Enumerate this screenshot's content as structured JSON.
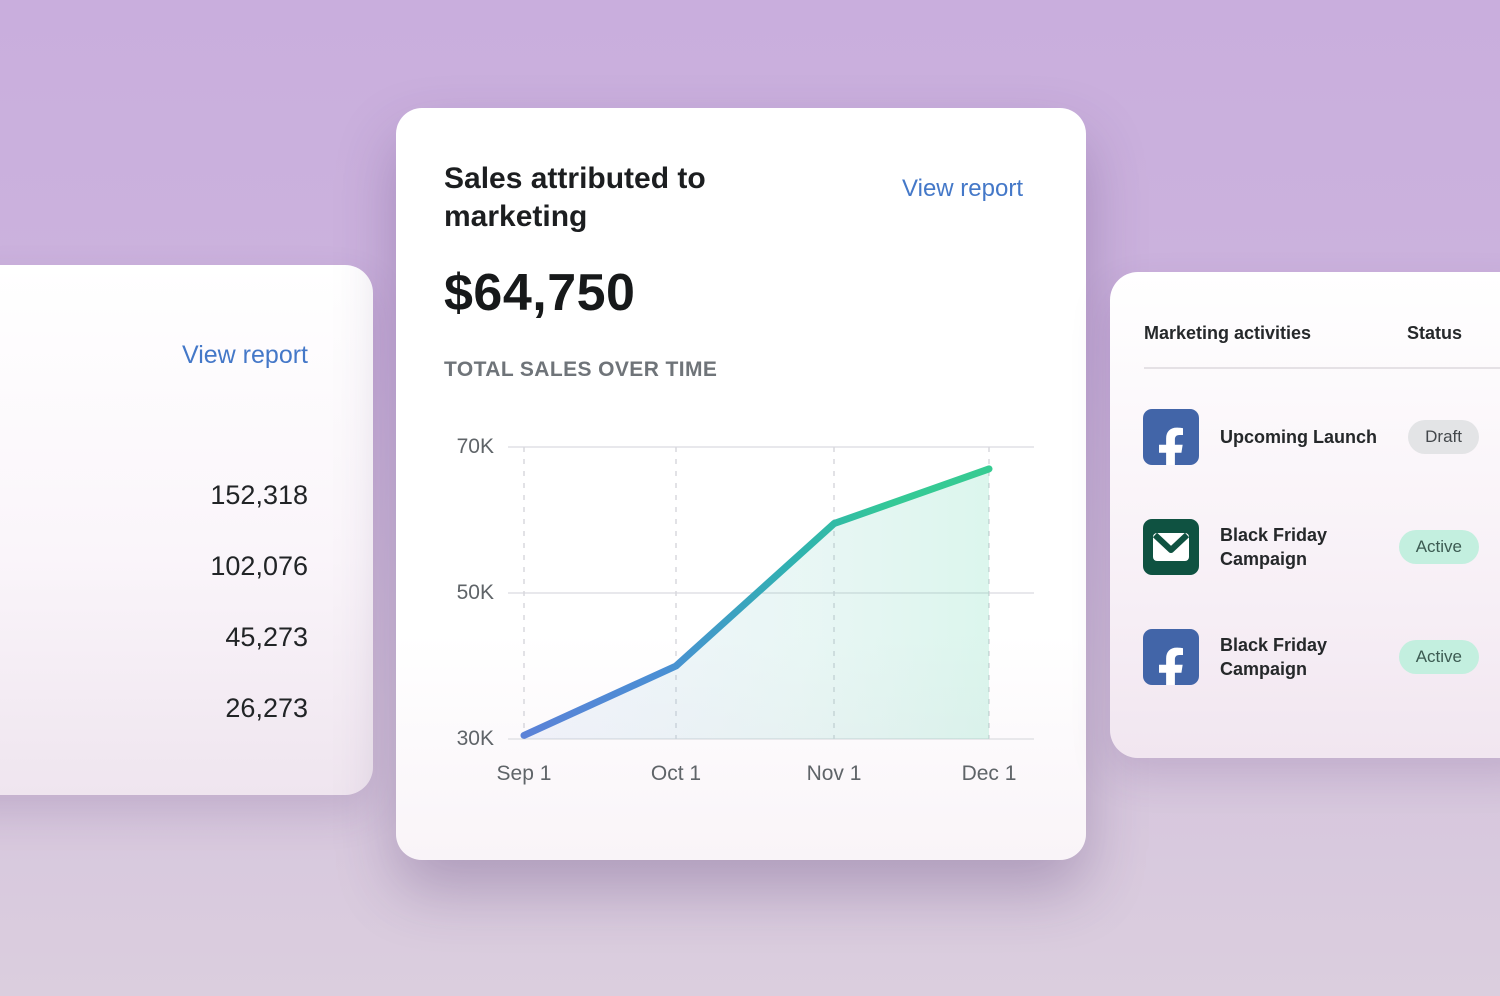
{
  "colors": {
    "bg_top": "#c9aedd",
    "bg_bottom": "#dbcede",
    "link": "#4478c8",
    "line_start": "#5b82d7",
    "line_mid": "#30b2b0",
    "line_end": "#36cb92",
    "facebook_tile": "#4265a8",
    "email_tile": "#0f5241",
    "badge_draft_bg": "#e3e4e6",
    "badge_active_bg": "#c3efdf"
  },
  "left_card": {
    "view_report": "View report",
    "values": [
      "152,318",
      "102,076",
      "45,273",
      "26,273"
    ]
  },
  "center_card": {
    "title": "Sales attributed to marketing",
    "view_report": "View report",
    "amount": "$64,750",
    "subtitle": "TOTAL SALES OVER TIME"
  },
  "chart_data": {
    "type": "area",
    "title": "Total sales over time",
    "x": [
      "Sep 1",
      "Oct 1",
      "Nov 1",
      "Dec 1"
    ],
    "values": [
      30500,
      40000,
      59500,
      67000
    ],
    "ylim": [
      30000,
      70000
    ],
    "y_ticks": [
      {
        "label": "70K",
        "value": 70000
      },
      {
        "label": "50K",
        "value": 50000
      },
      {
        "label": "30K",
        "value": 30000
      }
    ],
    "grid": {
      "horizontal": "solid",
      "vertical": "dashed"
    },
    "legend": "none"
  },
  "right_card": {
    "header": {
      "activities": "Marketing activities",
      "status": "Status"
    },
    "rows": [
      {
        "icon": "facebook-icon",
        "title": "Upcoming Launch",
        "status": "Draft",
        "variant": "draft"
      },
      {
        "icon": "email-icon",
        "title": "Black Friday Campaign",
        "status": "Active",
        "variant": "active"
      },
      {
        "icon": "facebook-icon",
        "title": "Black Friday Campaign",
        "status": "Active",
        "variant": "active"
      }
    ]
  }
}
